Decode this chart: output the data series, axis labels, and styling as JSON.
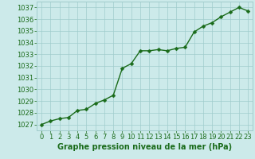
{
  "x": [
    0,
    1,
    2,
    3,
    4,
    5,
    6,
    7,
    8,
    9,
    10,
    11,
    12,
    13,
    14,
    15,
    16,
    17,
    18,
    19,
    20,
    21,
    22,
    23
  ],
  "y": [
    1027.0,
    1027.3,
    1027.5,
    1027.6,
    1028.2,
    1028.3,
    1028.8,
    1029.1,
    1029.5,
    1031.8,
    1032.2,
    1033.3,
    1033.3,
    1033.4,
    1033.3,
    1033.5,
    1033.6,
    1034.9,
    1035.4,
    1035.7,
    1036.2,
    1036.6,
    1037.0,
    1036.7
  ],
  "line_color": "#1a6b1a",
  "marker_color": "#1a6b1a",
  "bg_color": "#cceaea",
  "grid_color": "#a0cccc",
  "title": "Graphe pression niveau de la mer (hPa)",
  "xlim": [
    -0.5,
    23.5
  ],
  "ylim": [
    1026.5,
    1037.5
  ],
  "yticks": [
    1027,
    1028,
    1029,
    1030,
    1031,
    1032,
    1033,
    1034,
    1035,
    1036,
    1037
  ],
  "xticks": [
    0,
    1,
    2,
    3,
    4,
    5,
    6,
    7,
    8,
    9,
    10,
    11,
    12,
    13,
    14,
    15,
    16,
    17,
    18,
    19,
    20,
    21,
    22,
    23
  ],
  "tick_color": "#1a6b1a",
  "title_color": "#1a6b1a",
  "title_fontsize": 7.0,
  "tick_fontsize": 6.0,
  "line_width": 1.0,
  "marker_size": 2.5
}
